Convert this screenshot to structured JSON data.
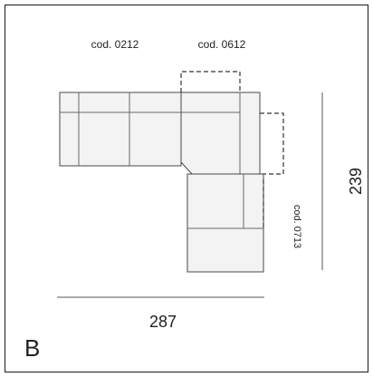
{
  "diagram": {
    "code_left": "cod. 0212",
    "code_corner": "cod. 0612",
    "code_right": "cod. 0713",
    "width_dimension": "287",
    "height_dimension": "239",
    "variant_letter": "B"
  },
  "colors": {
    "frame": "#1a1a1a",
    "module_fill": "#f3f3f3",
    "outline": "#4a4a4a",
    "dimension_line": "#555555",
    "text": "#222222"
  }
}
